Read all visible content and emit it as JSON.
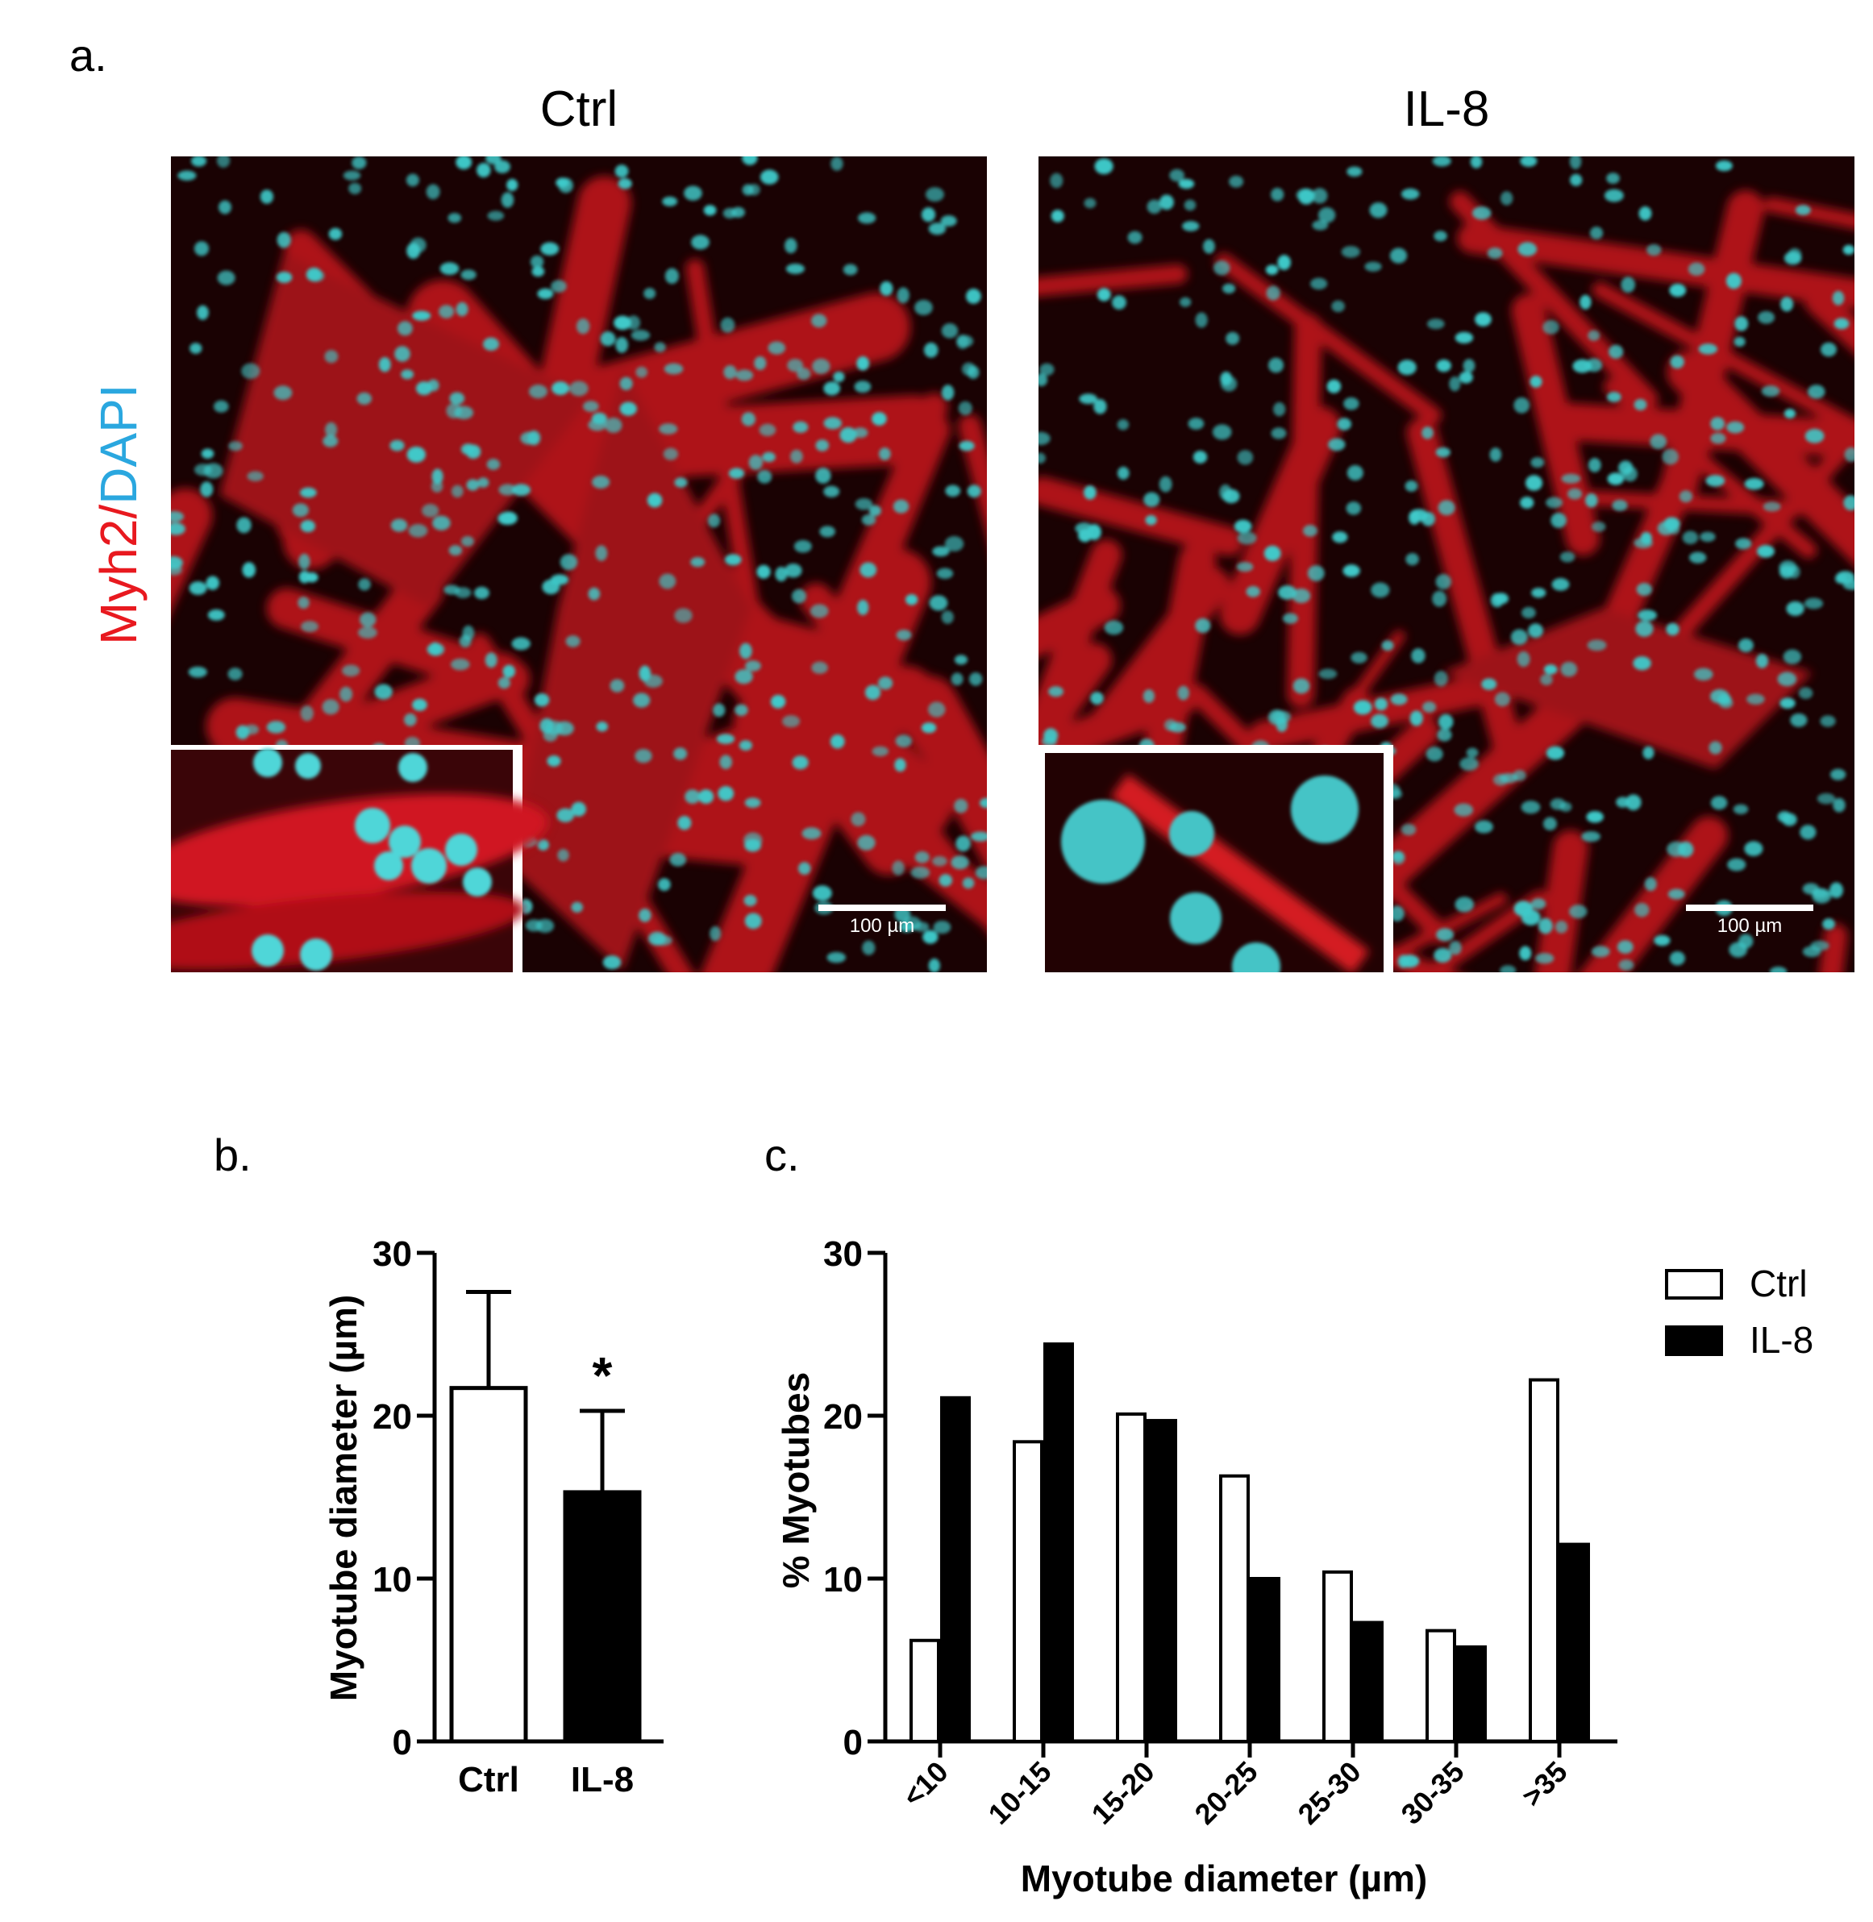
{
  "panels": {
    "a": "a.",
    "b": "b.",
    "c": "c."
  },
  "micrographs": {
    "stain_label": {
      "part1": "Myh2",
      "sep": "/",
      "part2": "DAPI"
    },
    "stain_colors": {
      "myh2": "#e8191f",
      "dapi": "#2aa7df"
    },
    "images": [
      {
        "title": "Ctrl",
        "scale_bar": "100 µm"
      },
      {
        "title": "IL-8",
        "scale_bar": "100 µm"
      }
    ]
  },
  "chart_data": [
    {
      "type": "bar",
      "panel": "b.",
      "categories": [
        "Ctrl",
        "IL-8"
      ],
      "series": [
        {
          "values": [
            21.7,
            15.3
          ],
          "errors": [
            5.9,
            5.0
          ],
          "colors": [
            "#ffffff",
            "#000000"
          ]
        }
      ],
      "annotations": [
        {
          "category": "IL-8",
          "text": "*"
        }
      ],
      "ylabel": "Myotube diameter (µm)",
      "ylim": [
        0,
        30
      ],
      "yticks": [
        0,
        10,
        20,
        30
      ]
    },
    {
      "type": "bar",
      "panel": "c.",
      "categories": [
        "<10",
        "10-15",
        "15-20",
        "20-25",
        "25-30",
        "30-35",
        ">35"
      ],
      "series": [
        {
          "name": "Ctrl",
          "values": [
            6.2,
            18.4,
            20.1,
            16.3,
            10.4,
            6.8,
            22.2
          ],
          "color": "#ffffff"
        },
        {
          "name": "IL-8",
          "values": [
            21.1,
            24.4,
            19.7,
            10.0,
            7.3,
            5.8,
            12.1
          ],
          "color": "#000000"
        }
      ],
      "xlabel": "Myotube diameter (µm)",
      "ylabel": "% Myotubes",
      "ylim": [
        0,
        30
      ],
      "yticks": [
        0,
        10,
        20,
        30
      ],
      "legend": "top-right"
    }
  ]
}
